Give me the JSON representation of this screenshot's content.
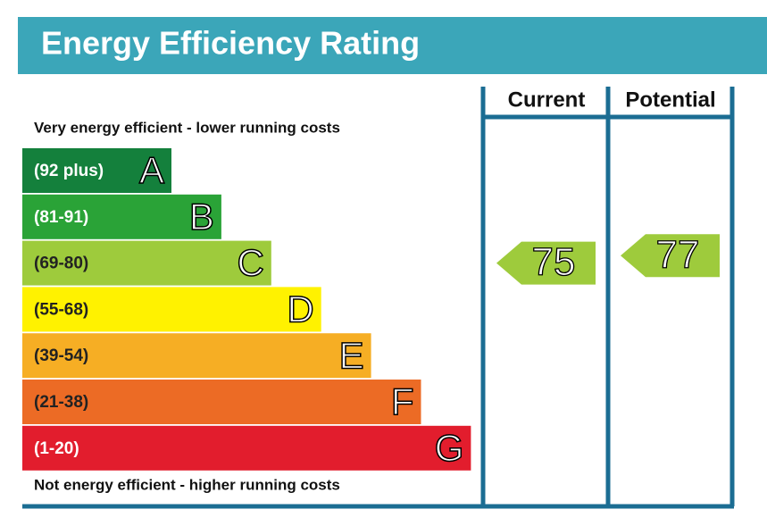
{
  "chart_data": {
    "type": "epc",
    "title": "Energy Efficiency Rating",
    "top_note": "Very energy efficient - lower running costs",
    "bottom_note": "Not energy efficient - higher running costs",
    "bands": [
      {
        "label": "(92 plus)",
        "letter": "A",
        "color": "#14803c"
      },
      {
        "label": "(81-91)",
        "letter": "B",
        "color": "#2aa337"
      },
      {
        "label": "(69-80)",
        "letter": "C",
        "color": "#9ecb3c"
      },
      {
        "label": "(55-68)",
        "letter": "D",
        "color": "#fff200"
      },
      {
        "label": "(39-54)",
        "letter": "E",
        "color": "#f6ae24"
      },
      {
        "label": "(21-38)",
        "letter": "F",
        "color": "#ec6b25"
      },
      {
        "label": "(1-20)",
        "letter": "G",
        "color": "#e21d2d"
      }
    ],
    "columns": [
      {
        "name": "Current",
        "value": 75,
        "color": "#9ecb3c"
      },
      {
        "name": "Potential",
        "value": 77,
        "color": "#9ecb3c"
      }
    ]
  }
}
